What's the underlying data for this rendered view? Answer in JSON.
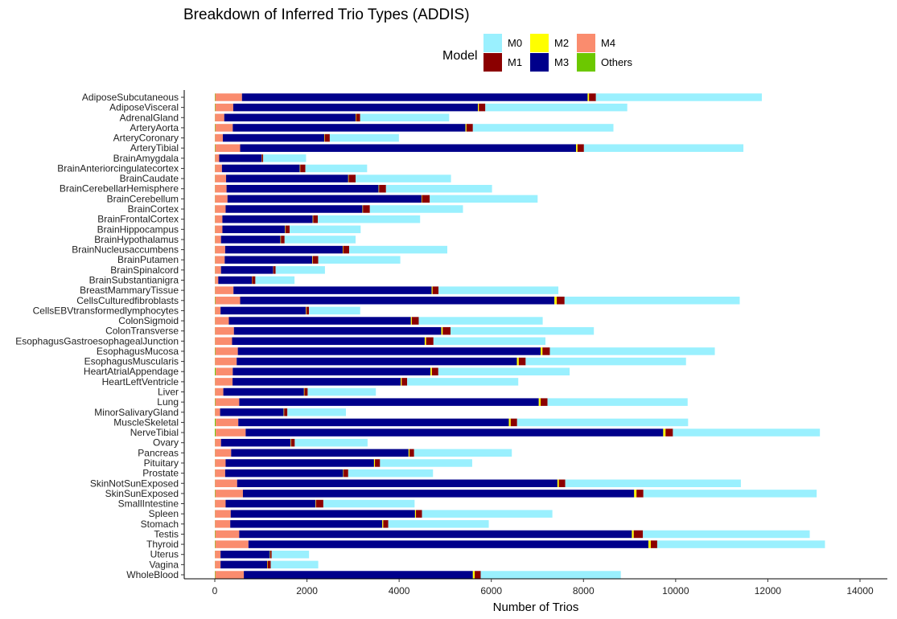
{
  "chart_data": {
    "type": "bar",
    "orientation": "horizontal",
    "stacked": true,
    "title": "Breakdown of Inferred Trio Types (ADDIS)",
    "xlabel": "Number of Trios",
    "ylabel": "",
    "xlim": [
      0,
      14000
    ],
    "x_ticks": [
      0,
      2000,
      4000,
      6000,
      8000,
      10000,
      12000,
      14000
    ],
    "grid": false,
    "legend": {
      "title": "Model",
      "position": "top",
      "entries": [
        {
          "key": "M0",
          "label": "M0",
          "color": "#9AF0FE"
        },
        {
          "key": "M1",
          "label": "M1",
          "color": "#8B0000"
        },
        {
          "key": "M2",
          "label": "M2",
          "color": "#FFFF00"
        },
        {
          "key": "M3",
          "label": "M3",
          "color": "#00008B"
        },
        {
          "key": "M4",
          "label": "M4",
          "color": "#FA8C6E"
        },
        {
          "key": "Others",
          "label": "Others",
          "color": "#6CC800"
        }
      ]
    },
    "stack_order": [
      "Others",
      "M4",
      "M3",
      "M2",
      "M1",
      "M0"
    ],
    "categories": [
      "AdiposeSubcutaneous",
      "AdiposeVisceral",
      "AdrenalGland",
      "ArteryAorta",
      "ArteryCoronary",
      "ArteryTibial",
      "BrainAmygdala",
      "BrainAnteriorcingulatecortex",
      "BrainCaudate",
      "BrainCerebellarHemisphere",
      "BrainCerebellum",
      "BrainCortex",
      "BrainFrontalCortex",
      "BrainHippocampus",
      "BrainHypothalamus",
      "BrainNucleusaccumbens",
      "BrainPutamen",
      "BrainSpinalcord",
      "BrainSubstantianigra",
      "BreastMammaryTissue",
      "CellsCulturedfibroblasts",
      "CellsEBVtransformedlymphocytes",
      "ColonSigmoid",
      "ColonTransverse",
      "EsophagusGastroesophagealJunction",
      "EsophagusMucosa",
      "EsophagusMuscularis",
      "HeartAtrialAppendage",
      "HeartLeftVentricle",
      "Liver",
      "Lung",
      "MinorSalivaryGland",
      "MuscleSkeletal",
      "NerveTibial",
      "Ovary",
      "Pancreas",
      "Pituitary",
      "Prostate",
      "SkinNotSunExposed",
      "SkinSunExposed",
      "SmallIntestine",
      "Spleen",
      "Stomach",
      "Testis",
      "Thyroid",
      "Uterus",
      "Vagina",
      "WholeBlood"
    ],
    "series": [
      {
        "name": "Others",
        "values": [
          10,
          10,
          5,
          10,
          5,
          10,
          5,
          5,
          5,
          5,
          5,
          5,
          5,
          5,
          5,
          5,
          5,
          5,
          5,
          5,
          10,
          5,
          5,
          5,
          5,
          10,
          5,
          20,
          5,
          5,
          10,
          5,
          20,
          20,
          5,
          5,
          5,
          5,
          5,
          10,
          5,
          5,
          5,
          10,
          10,
          5,
          5,
          10
        ]
      },
      {
        "name": "M4",
        "values": [
          580,
          390,
          200,
          380,
          170,
          540,
          90,
          150,
          240,
          250,
          270,
          230,
          160,
          160,
          130,
          220,
          210,
          130,
          70,
          400,
          540,
          120,
          300,
          410,
          370,
          490,
          470,
          370,
          380,
          180,
          520,
          110,
          490,
          650,
          130,
          350,
          230,
          220,
          480,
          600,
          230,
          340,
          330,
          520,
          720,
          120,
          120,
          620
        ]
      },
      {
        "name": "M3",
        "values": [
          7500,
          5310,
          2850,
          5050,
          2200,
          7290,
          920,
          1690,
          2650,
          3300,
          4210,
          2970,
          1960,
          1360,
          1290,
          2550,
          1900,
          1130,
          730,
          4300,
          6820,
          1850,
          3950,
          4500,
          4180,
          6570,
          6080,
          4290,
          3650,
          1750,
          6500,
          1380,
          5870,
          9060,
          1510,
          3850,
          3220,
          2560,
          6950,
          8490,
          1950,
          4000,
          3300,
          8520,
          8680,
          1070,
          1010,
          4970
        ]
      },
      {
        "name": "M2",
        "values": [
          30,
          20,
          10,
          20,
          10,
          30,
          5,
          10,
          10,
          10,
          10,
          10,
          10,
          10,
          10,
          10,
          10,
          5,
          5,
          20,
          50,
          10,
          20,
          30,
          30,
          40,
          40,
          30,
          20,
          10,
          40,
          10,
          40,
          50,
          10,
          20,
          20,
          10,
          30,
          50,
          10,
          20,
          20,
          40,
          50,
          10,
          10,
          40
        ]
      },
      {
        "name": "M1",
        "values": [
          150,
          140,
          90,
          140,
          110,
          140,
          30,
          110,
          150,
          150,
          170,
          150,
          100,
          90,
          80,
          130,
          120,
          50,
          70,
          130,
          170,
          60,
          150,
          170,
          160,
          160,
          150,
          140,
          120,
          70,
          150,
          70,
          140,
          160,
          80,
          100,
          110,
          100,
          140,
          150,
          160,
          130,
          110,
          200,
          140,
          30,
          70,
          130
        ]
      },
      {
        "name": "M0",
        "values": [
          3600,
          3080,
          1930,
          3050,
          1500,
          3460,
          930,
          1340,
          2070,
          2300,
          2340,
          2020,
          2220,
          1540,
          1540,
          2130,
          1780,
          1070,
          850,
          2600,
          3800,
          1110,
          2690,
          3110,
          2430,
          3580,
          3480,
          2850,
          2410,
          1480,
          3040,
          1270,
          3710,
          3190,
          1580,
          2120,
          2000,
          1840,
          3810,
          3760,
          1980,
          2830,
          2180,
          3620,
          3640,
          810,
          1030,
          3040
        ]
      }
    ]
  }
}
